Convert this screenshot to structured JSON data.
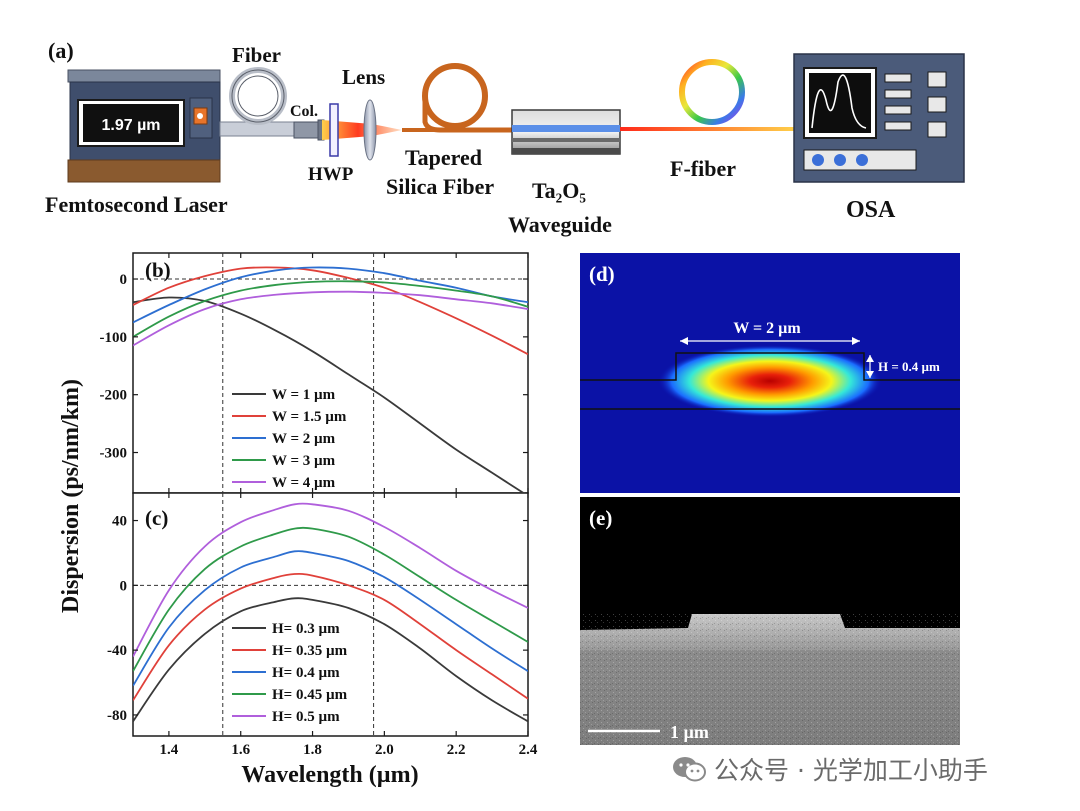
{
  "setup": {
    "panel_label": "(a)",
    "laser_display": "1.97 µm",
    "laser_name": "Femtosecond Laser",
    "fiber": "Fiber",
    "col": "Col.",
    "lens": "Lens",
    "hwp": "HWP",
    "tapered_line1": "Tapered",
    "tapered_line2": "Silica Fiber",
    "waveguide_formula": "Ta₂O₅",
    "waveguide_name": "Waveguide",
    "ffiber": "F-fiber",
    "osa": "OSA"
  },
  "axes": {
    "ylabel": "Dispersion (ps/nm/km)",
    "xlabel": "Wavelength (µm)",
    "x_ticks": [
      "1.4",
      "1.6",
      "1.8",
      "2.0",
      "2.2",
      "2.4"
    ],
    "b_y_ticks": [
      "0",
      "-100",
      "-200",
      "-300"
    ],
    "c_y_ticks": [
      "40",
      "0",
      "-40",
      "-80"
    ]
  },
  "chart_data": [
    {
      "type": "line",
      "panel": "(b)",
      "xlim": [
        1.3,
        2.4
      ],
      "ylim": [
        -370,
        45
      ],
      "x": [
        1.3,
        1.4,
        1.5,
        1.6,
        1.7,
        1.8,
        1.9,
        2.0,
        2.1,
        2.2,
        2.3,
        2.4
      ],
      "reference_lines": {
        "y": 0,
        "x": [
          1.55,
          1.97
        ]
      },
      "series": [
        {
          "name": "W = 1 µm",
          "color": "#3a3a3a",
          "values": [
            -40,
            -32,
            -38,
            -60,
            -90,
            -125,
            -165,
            -205,
            -250,
            -295,
            -335,
            -375
          ]
        },
        {
          "name": "W = 1.5 µm",
          "color": "#e0413a",
          "values": [
            -45,
            -15,
            5,
            18,
            20,
            15,
            2,
            -15,
            -40,
            -68,
            -98,
            -130
          ]
        },
        {
          "name": "W = 2 µm",
          "color": "#2d6fd1",
          "values": [
            -75,
            -45,
            -18,
            3,
            15,
            20,
            18,
            10,
            -3,
            -15,
            -30,
            -40
          ]
        },
        {
          "name": "W = 3 µm",
          "color": "#2f9a4a",
          "values": [
            -100,
            -65,
            -38,
            -20,
            -10,
            -5,
            -4,
            -6,
            -12,
            -20,
            -30,
            -48
          ]
        },
        {
          "name": "W = 4 µm",
          "color": "#b05fdc",
          "values": [
            -115,
            -80,
            -52,
            -35,
            -27,
            -23,
            -22,
            -24,
            -28,
            -35,
            -42,
            -52
          ]
        }
      ]
    },
    {
      "type": "line",
      "panel": "(c)",
      "xlim": [
        1.3,
        2.4
      ],
      "ylim": [
        -93,
        57
      ],
      "x": [
        1.3,
        1.4,
        1.5,
        1.6,
        1.7,
        1.75,
        1.8,
        1.9,
        2.0,
        2.1,
        2.2,
        2.3,
        2.4
      ],
      "reference_lines": {
        "y": 0,
        "x": [
          1.55,
          1.97
        ]
      },
      "series": [
        {
          "name": "H= 0.3 µm",
          "color": "#3a3a3a",
          "values": [
            -84,
            -52,
            -30,
            -16,
            -10,
            -8,
            -9,
            -14,
            -24,
            -39,
            -56,
            -71,
            -84
          ]
        },
        {
          "name": "H= 0.35 µm",
          "color": "#e0413a",
          "values": [
            -71,
            -37,
            -15,
            -2,
            5,
            7,
            6,
            0,
            -9,
            -24,
            -40,
            -55,
            -70
          ]
        },
        {
          "name": "H= 0.4 µm",
          "color": "#2d6fd1",
          "values": [
            -62,
            -26,
            -3,
            11,
            18,
            21,
            20,
            15,
            5,
            -9,
            -24,
            -39,
            -53
          ]
        },
        {
          "name": "H= 0.45 µm",
          "color": "#2f9a4a",
          "values": [
            -53,
            -15,
            10,
            24,
            32,
            35,
            35,
            30,
            19,
            5,
            -9,
            -22,
            -35
          ]
        },
        {
          "name": "H= 0.5 µm",
          "color": "#b05fdc",
          "values": [
            -44,
            -3,
            24,
            39,
            47,
            50,
            50,
            46,
            36,
            23,
            9,
            -3,
            -14
          ]
        }
      ]
    }
  ],
  "mode": {
    "panel_label": "(d)",
    "width_label": "W = 2 µm",
    "height_label": "H = 0.4 µm"
  },
  "sem": {
    "panel_label": "(e)",
    "scale_label": "1 µm"
  },
  "watermark": {
    "text": "公众号 · 光学加工小助手"
  }
}
